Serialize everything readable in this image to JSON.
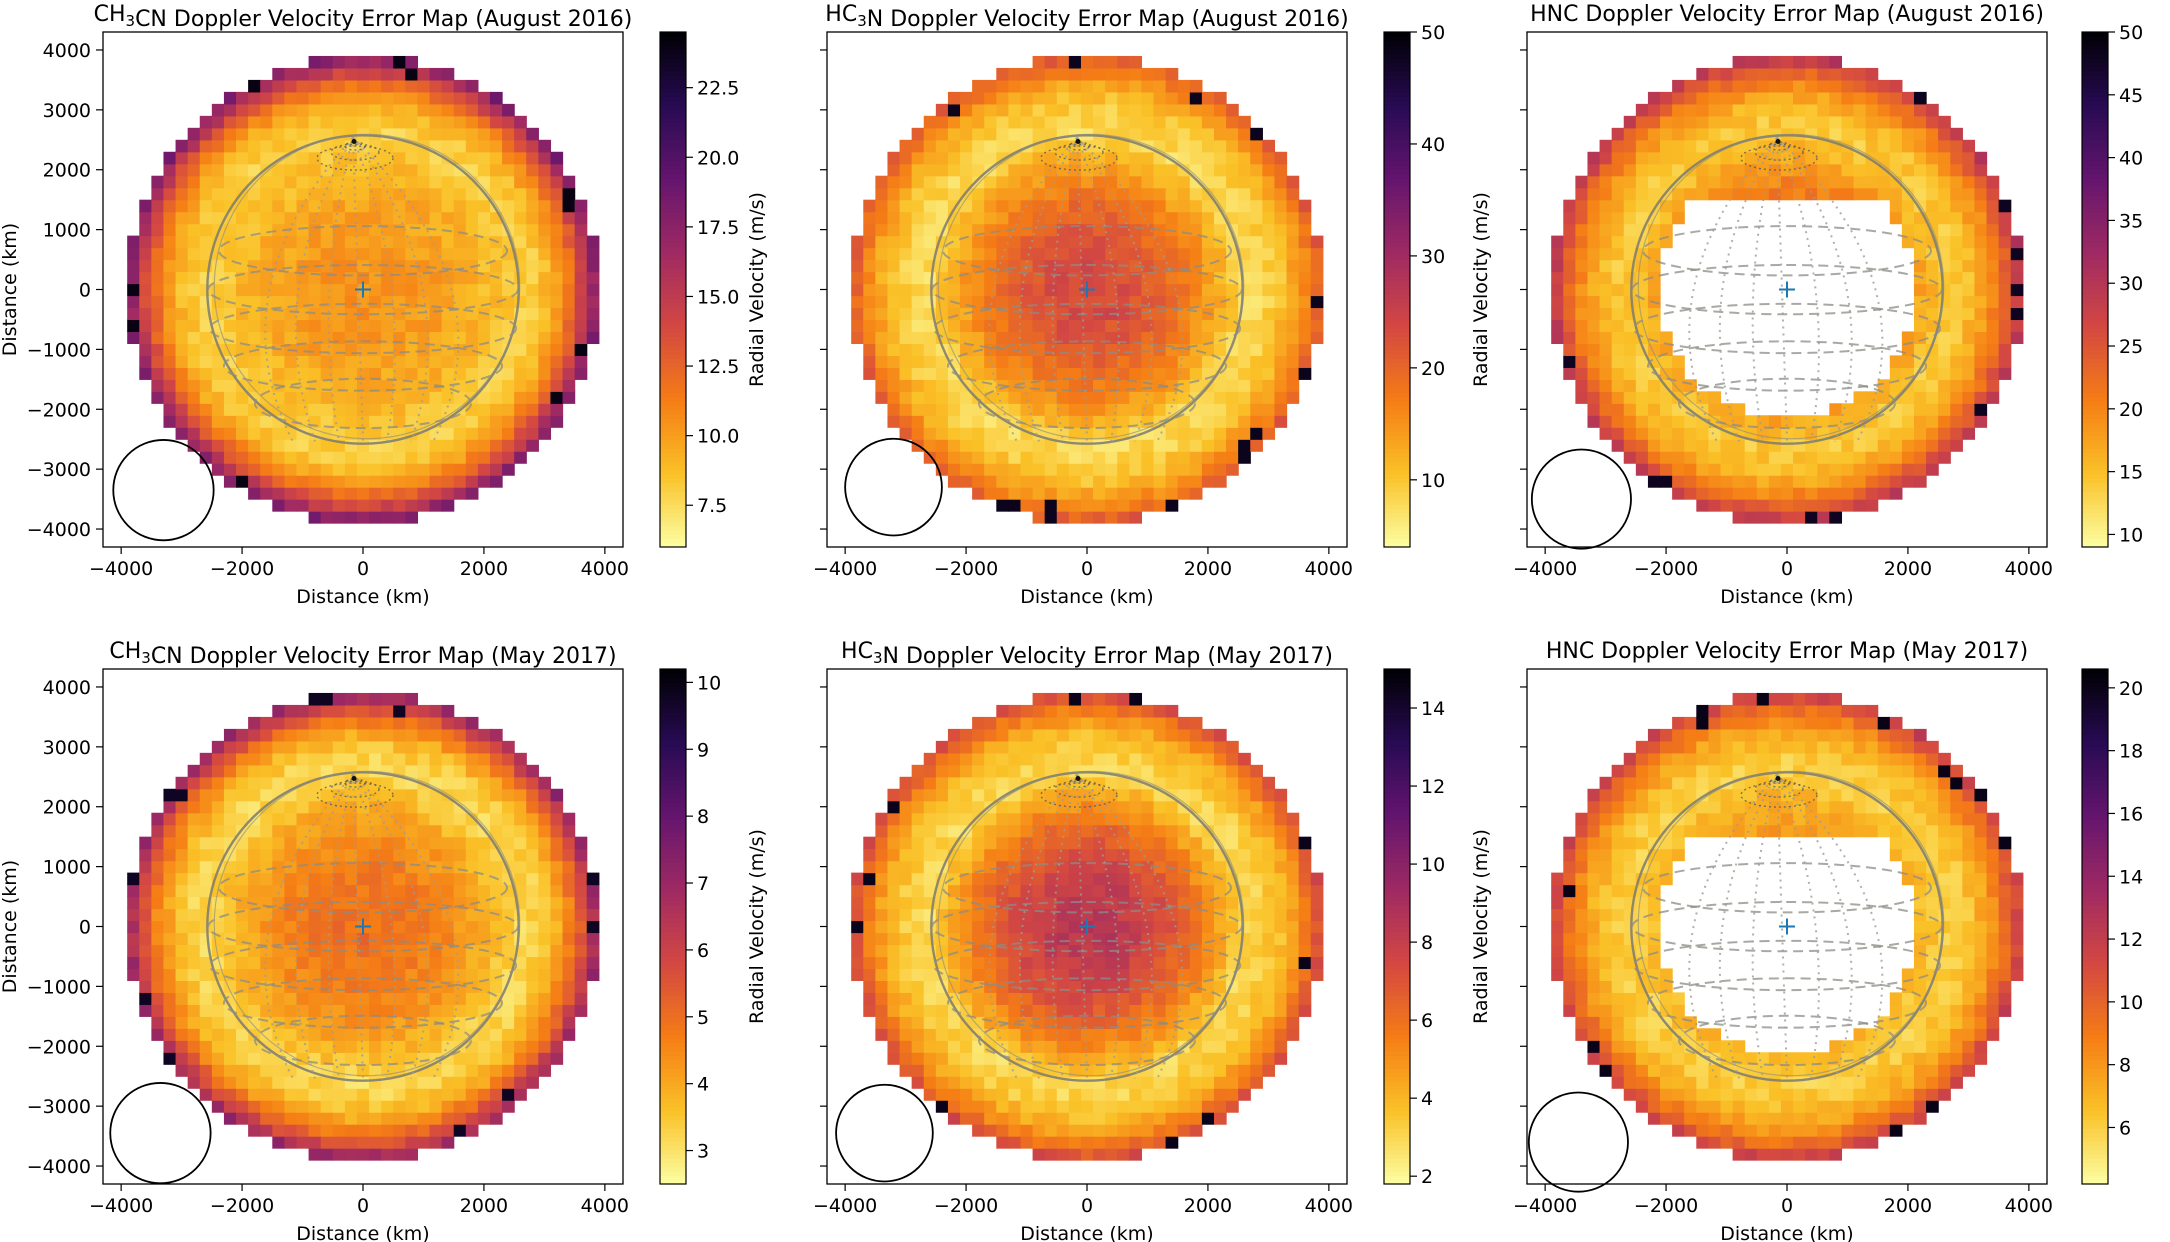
{
  "figure": {
    "x_tick_labels": [
      "−4000",
      "−2000",
      "0",
      "2000",
      "4000"
    ],
    "y_tick_labels": [
      "4000",
      "3000",
      "2000",
      "1000",
      "0",
      "−1000",
      "−2000",
      "−3000",
      "−4000"
    ],
    "y_ticks_shown_on_left_panels_only": true
  },
  "chart_data": [
    {
      "type": "heatmap",
      "title_prefix": "CH",
      "title_sub1": "3",
      "title_mid": "CN",
      "title_sub2": "",
      "title_suffix": " Doppler Velocity Error Map (August 2016)",
      "xlabel": "Distance (km)",
      "ylabel": "Distance (km)",
      "xlim": [
        -4300,
        4300
      ],
      "ylim": [
        -4300,
        4300
      ],
      "colorbar": {
        "label": "Radial Velocity (m/s)",
        "range": [
          6,
          24.5
        ],
        "ticks": [
          7.5,
          10.0,
          12.5,
          15.0,
          17.5,
          20.0,
          22.5
        ],
        "tick_labels": [
          "7.5",
          "10.0",
          "12.5",
          "15.0",
          "17.5",
          "20.0",
          "22.5"
        ]
      },
      "map_radius_km": 3900,
      "disk_radius_km": 2575,
      "masked_radius_km": 0,
      "center_km": [
        0,
        0
      ],
      "beam_center_km": [
        -3300,
        -3350
      ],
      "beam_radius_km": 830,
      "error_profile": {
        "center": 10.5,
        "disk_edge": 8.0,
        "outer_edge": 18.5,
        "extremes": 24.0
      }
    },
    {
      "type": "heatmap",
      "title_prefix": "HC",
      "title_sub1": "3",
      "title_mid": "N",
      "title_sub2": "",
      "title_suffix": " Doppler Velocity Error Map (August 2016)",
      "xlabel": "Distance (km)",
      "ylabel": "",
      "xlim": [
        -4300,
        4300
      ],
      "ylim": [
        -4300,
        4300
      ],
      "colorbar": {
        "label": "Radial Velocity (m/s)",
        "range": [
          4,
          50
        ],
        "ticks": [
          10,
          20,
          30,
          40,
          50
        ],
        "tick_labels": [
          "10",
          "20",
          "30",
          "40",
          "50"
        ]
      },
      "map_radius_km": 3900,
      "disk_radius_km": 2575,
      "masked_radius_km": 0,
      "center_km": [
        0,
        0
      ],
      "beam_center_km": [
        -3200,
        -3300
      ],
      "beam_radius_km": 800,
      "error_profile": {
        "center": 24.0,
        "disk_edge": 8.0,
        "outer_edge": 22.0,
        "extremes": 48.0
      }
    },
    {
      "type": "heatmap",
      "title_prefix": "HNC",
      "title_sub1": "",
      "title_mid": "",
      "title_sub2": "",
      "title_suffix": " Doppler Velocity Error Map (August 2016)",
      "xlabel": "Distance (km)",
      "ylabel": "",
      "xlim": [
        -4300,
        4300
      ],
      "ylim": [
        -4300,
        4300
      ],
      "colorbar": {
        "label": "Radial Velocity (m/s)",
        "range": [
          9,
          50
        ],
        "ticks": [
          10,
          15,
          20,
          25,
          30,
          35,
          40,
          45,
          50
        ],
        "tick_labels": [
          "10",
          "15",
          "20",
          "25",
          "30",
          "35",
          "40",
          "45",
          "50"
        ]
      },
      "map_radius_km": 3900,
      "disk_radius_km": 2575,
      "masked_radius_km": 2150,
      "center_km": [
        0,
        0
      ],
      "beam_center_km": [
        -3400,
        -3500
      ],
      "beam_radius_km": 820,
      "error_profile": {
        "center": 26.0,
        "disk_edge": 14.0,
        "outer_edge": 30.0,
        "extremes": 48.0
      }
    },
    {
      "type": "heatmap",
      "title_prefix": "CH",
      "title_sub1": "3",
      "title_mid": "CN",
      "title_sub2": "",
      "title_suffix": " Doppler Velocity Error Map (May 2017)",
      "xlabel": "Distance (km)",
      "ylabel": "Distance (km)",
      "xlim": [
        -4300,
        4300
      ],
      "ylim": [
        -4300,
        4300
      ],
      "colorbar": {
        "label": "Radial Velocity (m/s)",
        "range": [
          2.5,
          10.2
        ],
        "ticks": [
          3,
          4,
          5,
          6,
          7,
          8,
          9,
          10
        ],
        "tick_labels": [
          "3",
          "4",
          "5",
          "6",
          "7",
          "8",
          "9",
          "10"
        ]
      },
      "map_radius_km": 3900,
      "disk_radius_km": 2575,
      "masked_radius_km": 0,
      "center_km": [
        0,
        0
      ],
      "beam_center_km": [
        -3350,
        -3450
      ],
      "beam_radius_km": 830,
      "error_profile": {
        "center": 5.0,
        "disk_edge": 3.2,
        "outer_edge": 7.2,
        "extremes": 9.8
      }
    },
    {
      "type": "heatmap",
      "title_prefix": "HC",
      "title_sub1": "3",
      "title_mid": "N",
      "title_sub2": "",
      "title_suffix": " Doppler Velocity Error Map (May 2017)",
      "xlabel": "Distance (km)",
      "ylabel": "",
      "xlim": [
        -4300,
        4300
      ],
      "ylim": [
        -4300,
        4300
      ],
      "colorbar": {
        "label": "Radial Velocity (m/s)",
        "range": [
          1.8,
          15
        ],
        "ticks": [
          2,
          4,
          6,
          8,
          10,
          12,
          14
        ],
        "tick_labels": [
          "2",
          "4",
          "6",
          "8",
          "10",
          "12",
          "14"
        ]
      },
      "map_radius_km": 3900,
      "disk_radius_km": 2575,
      "masked_radius_km": 0,
      "center_km": [
        0,
        0
      ],
      "beam_center_km": [
        -3350,
        -3450
      ],
      "beam_radius_km": 800,
      "error_profile": {
        "center": 8.5,
        "disk_edge": 3.0,
        "outer_edge": 7.5,
        "extremes": 14.5
      }
    },
    {
      "type": "heatmap",
      "title_prefix": "HNC",
      "title_sub1": "",
      "title_mid": "",
      "title_sub2": "",
      "title_suffix": " Doppler Velocity Error Map (May 2017)",
      "xlabel": "Distance (km)",
      "ylabel": "",
      "xlim": [
        -4300,
        4300
      ],
      "ylim": [
        -4300,
        4300
      ],
      "colorbar": {
        "label": "Radial Velocity (m/s)",
        "range": [
          4.2,
          20.6
        ],
        "ticks": [
          6,
          8,
          10,
          12,
          14,
          16,
          18,
          20
        ],
        "tick_labels": [
          "6",
          "8",
          "10",
          "12",
          "14",
          "16",
          "18",
          "20"
        ]
      },
      "map_radius_km": 3900,
      "disk_radius_km": 2575,
      "masked_radius_km": 2150,
      "center_km": [
        0,
        0
      ],
      "beam_center_km": [
        -3450,
        -3600
      ],
      "beam_radius_km": 820,
      "error_profile": {
        "center": 9.0,
        "disk_edge": 6.0,
        "outer_edge": 12.0,
        "extremes": 20.0
      }
    }
  ]
}
